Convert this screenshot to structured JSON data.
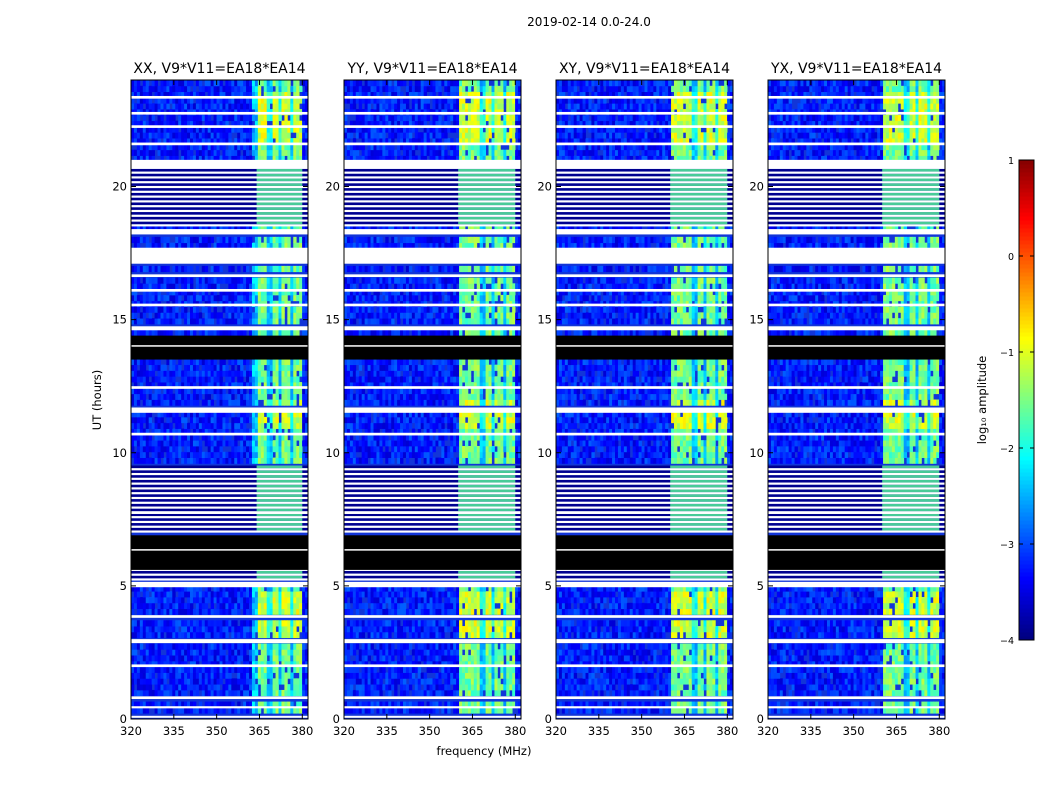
{
  "chart_data": {
    "type": "heatmap",
    "suptitle": "2019-02-14 0.0-24.0",
    "xlabel": "frequency (MHz)",
    "ylabel": "UT (hours)",
    "xlim": [
      320,
      382
    ],
    "ylim": [
      0,
      24
    ],
    "xticks": [
      320,
      335,
      350,
      365,
      380
    ],
    "yticks": [
      0,
      5,
      10,
      15,
      20
    ],
    "panels": [
      {
        "title": "XX, V9*V11=EA18*EA14",
        "strong_band": [
          364,
          380
        ]
      },
      {
        "title": "YY, V9*V11=EA18*EA14",
        "strong_band": [
          360,
          380
        ]
      },
      {
        "title": "XY, V9*V11=EA18*EA14",
        "strong_band": [
          360,
          380
        ]
      },
      {
        "title": "YX, V9*V11=EA18*EA14",
        "strong_band": [
          360,
          380
        ]
      }
    ],
    "colorbar": {
      "label": "log₁₀ amplitude",
      "range": [
        -4,
        1
      ],
      "ticks": [
        "1",
        "0",
        "−1",
        "−2",
        "−3",
        "−4"
      ],
      "colormap": "jet"
    },
    "flagged_hours": [
      [
        5.6,
        6.9
      ],
      [
        13.5,
        14.4
      ],
      [
        0.05,
        0.12
      ],
      [
        0.4,
        0.48
      ],
      [
        0.75,
        0.85
      ],
      [
        1.95,
        2.05
      ],
      [
        2.85,
        3.0
      ],
      [
        3.8,
        3.9
      ],
      [
        4.95,
        5.15
      ],
      [
        7.7,
        7.8
      ],
      [
        10.65,
        10.75
      ],
      [
        11.5,
        11.7
      ],
      [
        12.4,
        12.5
      ],
      [
        14.6,
        14.75
      ],
      [
        15.5,
        15.6
      ],
      [
        16.05,
        16.15
      ],
      [
        16.6,
        16.7
      ],
      [
        17.1,
        17.7
      ],
      [
        18.2,
        18.4
      ],
      [
        20.7,
        21.0
      ],
      [
        21.55,
        21.65
      ],
      [
        22.2,
        22.3
      ],
      [
        22.7,
        22.8
      ],
      [
        23.3,
        23.4
      ]
    ],
    "striped_hours": [
      [
        5.2,
        5.6
      ],
      [
        7.0,
        9.5
      ],
      [
        18.5,
        20.7
      ]
    ]
  }
}
